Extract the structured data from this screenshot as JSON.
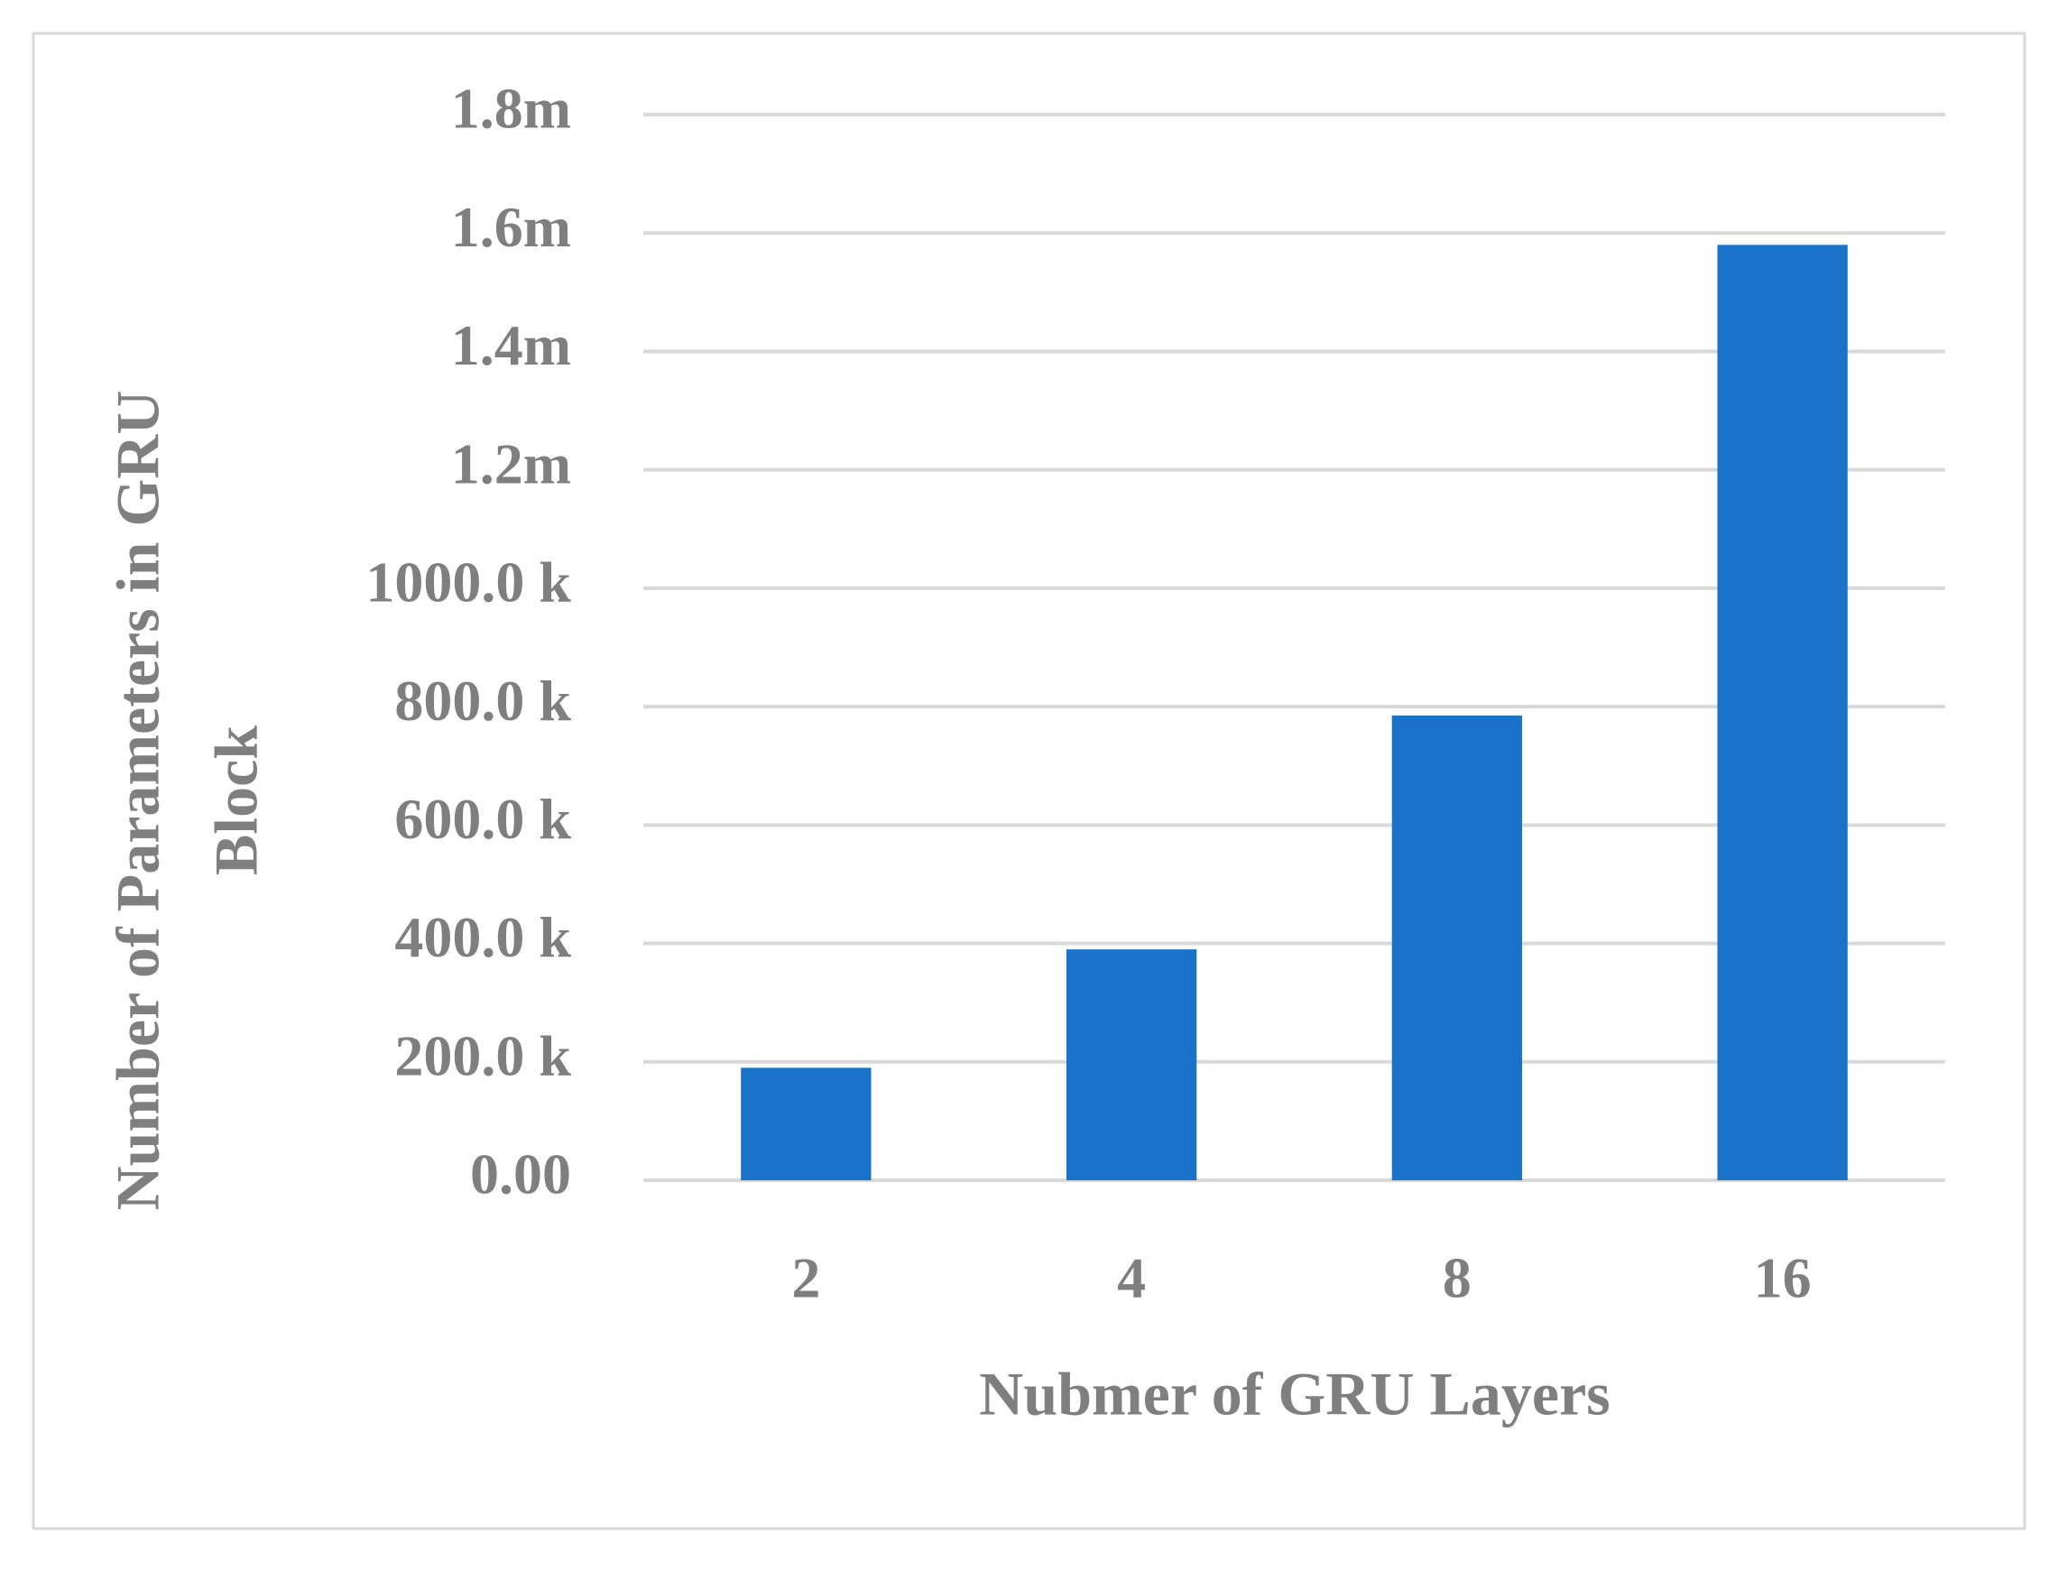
{
  "chart_data": {
    "type": "bar",
    "xlabel": "Nubmer of GRU Layers",
    "ylabel": [
      "Number of Parameters  in GRU",
      "Block"
    ],
    "categories": [
      "2",
      "4",
      "8",
      "16"
    ],
    "values": [
      190000,
      390000,
      785000,
      1580000
    ],
    "color": "#1a73c8",
    "ylim": [
      0,
      1800000
    ],
    "yticks": [
      {
        "value": 0,
        "label": "0.00"
      },
      {
        "value": 200000,
        "label": "200.0 k"
      },
      {
        "value": 400000,
        "label": "400.0 k"
      },
      {
        "value": 600000,
        "label": "600.0 k"
      },
      {
        "value": 800000,
        "label": "800.0 k"
      },
      {
        "value": 1000000,
        "label": "1000.0 k"
      },
      {
        "value": 1200000,
        "label": "1.2m"
      },
      {
        "value": 1400000,
        "label": "1.4m"
      },
      {
        "value": 1600000,
        "label": "1.6m"
      },
      {
        "value": 1800000,
        "label": "1.8m"
      }
    ],
    "grid": true
  }
}
